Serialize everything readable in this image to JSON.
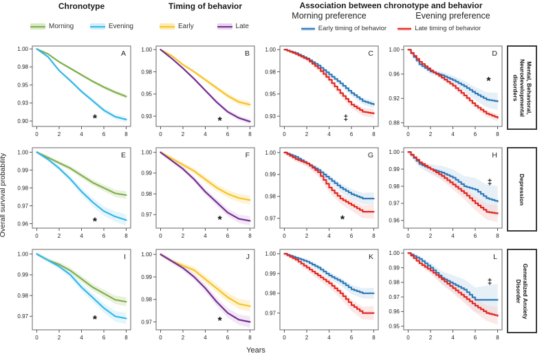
{
  "figure": {
    "column_headers": [
      "Chronotype",
      "Timing of behavior",
      "Association between chronotype  and behavior"
    ],
    "sub_headers": [
      "Morning preference",
      "Evening preference"
    ],
    "ylabel": "Overall survival probability",
    "xlabel": "Years",
    "row_labels": [
      "Mental, Behavioral, Neurodevelopmental disorders",
      "Depression",
      "Generalized Anxiety Disorder"
    ],
    "legends": {
      "chronotype": [
        {
          "label": "Morning",
          "color": "#7fae4f",
          "band": "#d8e8c2"
        },
        {
          "label": "Evening",
          "color": "#35b5e8",
          "band": "#cdeefb"
        }
      ],
      "timing": [
        {
          "label": "Early",
          "color": "#f7c325",
          "band": "#fdeab2"
        },
        {
          "label": "Late",
          "color": "#742d8f",
          "band": "#e5d3ee"
        }
      ],
      "association": [
        {
          "label": "Early timing of behavior",
          "color": "#2c79b8",
          "band": "#d3e2f0"
        },
        {
          "label": "Late timing of behavior",
          "color": "#e2261f",
          "band": "#f8d6d4"
        }
      ]
    }
  },
  "chart_data": [
    {
      "type": "line",
      "panel": "A",
      "row": 0,
      "col": 0,
      "style": "smooth",
      "group": "Chronotype",
      "outcome": "Mental, Behavioral, Neurodevelopmental disorders",
      "x": [
        0,
        1,
        2,
        3,
        4,
        5,
        6,
        7,
        8
      ],
      "xticks": [
        0,
        2,
        4,
        6,
        8
      ],
      "ylim": [
        0.8925,
        1.004
      ],
      "yticks": {
        "values": [
          1.0,
          0.975,
          0.95,
          0.925,
          0.9
        ],
        "labels": [
          "1.00",
          "0.98",
          "0.95",
          "0.93",
          "0.90"
        ]
      },
      "series": [
        {
          "name": "Morning",
          "color": "#7fae4f",
          "band": "#d8e8c2",
          "band_end": 0.003,
          "values": [
            1.0,
            0.993,
            0.982,
            0.973,
            0.964,
            0.955,
            0.947,
            0.94,
            0.934
          ]
        },
        {
          "name": "Evening",
          "color": "#35b5e8",
          "band": "#cdeefb",
          "band_end": 0.004,
          "values": [
            1.0,
            0.989,
            0.97,
            0.956,
            0.941,
            0.928,
            0.915,
            0.906,
            0.902
          ]
        }
      ],
      "significance": {
        "symbol": "*",
        "x": 5.2,
        "y": 0.9045
      }
    },
    {
      "type": "line",
      "panel": "B",
      "row": 0,
      "col": 1,
      "style": "smooth",
      "group": "Timing of behavior",
      "outcome": "Mental, Behavioral, Neurodevelopmental disorders",
      "x": [
        0,
        1,
        2,
        3,
        4,
        5,
        6,
        7,
        8
      ],
      "xticks": [
        0,
        2,
        4,
        6,
        8
      ],
      "ylim": [
        0.9135,
        1.004
      ],
      "yticks": {
        "values": [
          1.0,
          0.975,
          0.95,
          0.925
        ],
        "labels": [
          "1.00",
          "0.98",
          "0.95",
          "0.93"
        ]
      },
      "series": [
        {
          "name": "Early",
          "color": "#f7c325",
          "band": "#fdeab2",
          "band_end": 0.0035,
          "values": [
            1.0,
            0.993,
            0.983,
            0.975,
            0.966,
            0.957,
            0.948,
            0.941,
            0.938
          ]
        },
        {
          "name": "Late",
          "color": "#742d8f",
          "band": "#e5d3ee",
          "band_end": 0.003,
          "values": [
            1.0,
            0.99,
            0.979,
            0.967,
            0.954,
            0.941,
            0.93,
            0.923,
            0.919
          ]
        }
      ],
      "significance": {
        "symbol": "*",
        "x": 5.3,
        "y": 0.9205
      }
    },
    {
      "type": "line",
      "panel": "C",
      "row": 0,
      "col": 2,
      "style": "step",
      "group": "Morning preference",
      "outcome": "Mental, Behavioral, Neurodevelopmental disorders",
      "x": [
        0,
        1,
        2,
        3,
        4,
        5,
        6,
        7,
        8
      ],
      "xticks": [
        0,
        2,
        4,
        6,
        8
      ],
      "ylim": [
        0.9135,
        1.004
      ],
      "yticks": {
        "values": [
          1.0,
          0.975,
          0.95,
          0.925
        ],
        "labels": [
          "1.00",
          "0.98",
          "0.95",
          "0.93"
        ]
      },
      "series": [
        {
          "name": "Early timing of behavior",
          "color": "#2c79b8",
          "band": "#d3e2f0",
          "band_end": 0.004,
          "values": [
            1.0,
            0.996,
            0.99,
            0.982,
            0.972,
            0.962,
            0.951,
            0.942,
            0.938
          ]
        },
        {
          "name": "Late timing of behavior",
          "color": "#e2261f",
          "band": "#f8d6d4",
          "band_end": 0.005,
          "values": [
            1.0,
            0.995,
            0.989,
            0.979,
            0.966,
            0.951,
            0.938,
            0.93,
            0.928
          ]
        }
      ],
      "significance": {
        "symbol": "‡",
        "x": 5.5,
        "y": 0.9225
      }
    },
    {
      "type": "line",
      "panel": "D",
      "row": 0,
      "col": 3,
      "style": "step",
      "group": "Evening preference",
      "outcome": "Mental, Behavioral, Neurodevelopmental disorders",
      "x": [
        0,
        1,
        2,
        3,
        4,
        5,
        6,
        7,
        8
      ],
      "xticks": [
        0,
        2,
        4,
        6,
        8
      ],
      "ylim": [
        0.874,
        1.006
      ],
      "yticks": {
        "values": [
          1.0,
          0.96,
          0.92,
          0.88
        ],
        "labels": [
          "1.00",
          "0.96",
          "0.92",
          "0.88"
        ]
      },
      "series": [
        {
          "name": "Early timing of behavior",
          "color": "#2c79b8",
          "band": "#d3e2f0",
          "band_end": 0.014,
          "values": [
            1.0,
            0.976,
            0.964,
            0.958,
            0.95,
            0.94,
            0.928,
            0.918,
            0.915
          ]
        },
        {
          "name": "Late timing of behavior",
          "color": "#e2261f",
          "band": "#f8d6d4",
          "band_end": 0.006,
          "values": [
            1.0,
            0.98,
            0.966,
            0.954,
            0.941,
            0.925,
            0.908,
            0.895,
            0.888
          ]
        }
      ],
      "significance": {
        "symbol": "*",
        "x": 7.2,
        "y": 0.9495
      }
    },
    {
      "type": "line",
      "panel": "E",
      "row": 1,
      "col": 0,
      "style": "smooth",
      "group": "Chronotype",
      "outcome": "Depression",
      "x": [
        0,
        1,
        2,
        3,
        4,
        5,
        6,
        7,
        8
      ],
      "xticks": [
        0,
        2,
        4,
        6,
        8
      ],
      "ylim": [
        0.9575,
        1.0025
      ],
      "yticks": {
        "values": [
          1.0,
          0.99,
          0.98,
          0.97,
          0.96
        ],
        "labels": [
          "1.00",
          "0.99",
          "0.98",
          "0.97",
          "0.96"
        ]
      },
      "series": [
        {
          "name": "Morning",
          "color": "#7fae4f",
          "band": "#d8e8c2",
          "band_end": 0.0022,
          "values": [
            1.0,
            0.997,
            0.994,
            0.991,
            0.987,
            0.983,
            0.98,
            0.977,
            0.976
          ]
        },
        {
          "name": "Evening",
          "color": "#35b5e8",
          "band": "#cdeefb",
          "band_end": 0.0032,
          "values": [
            1.0,
            0.996,
            0.991,
            0.985,
            0.978,
            0.972,
            0.967,
            0.964,
            0.962
          ]
        }
      ],
      "significance": {
        "symbol": "*",
        "x": 5.2,
        "y": 0.9615
      }
    },
    {
      "type": "line",
      "panel": "F",
      "row": 1,
      "col": 1,
      "style": "smooth",
      "group": "Timing of behavior",
      "outcome": "Depression",
      "x": [
        0,
        1,
        2,
        3,
        4,
        5,
        6,
        7,
        8
      ],
      "xticks": [
        0,
        2,
        4,
        6,
        8
      ],
      "ylim": [
        0.9635,
        1.0022
      ],
      "yticks": {
        "values": [
          1.0,
          0.99,
          0.98,
          0.97
        ],
        "labels": [
          "1.00",
          "0.99",
          "0.98",
          "0.97"
        ]
      },
      "series": [
        {
          "name": "Early",
          "color": "#f7c325",
          "band": "#fdeab2",
          "band_end": 0.0022,
          "values": [
            1.0,
            0.997,
            0.994,
            0.991,
            0.987,
            0.983,
            0.98,
            0.978,
            0.977
          ]
        },
        {
          "name": "Late",
          "color": "#742d8f",
          "band": "#e5d3ee",
          "band_end": 0.0022,
          "values": [
            1.0,
            0.996,
            0.992,
            0.987,
            0.981,
            0.976,
            0.971,
            0.968,
            0.967
          ]
        }
      ],
      "significance": {
        "symbol": "*",
        "x": 5.3,
        "y": 0.9678
      }
    },
    {
      "type": "line",
      "panel": "G",
      "row": 1,
      "col": 2,
      "style": "step",
      "group": "Morning preference",
      "outcome": "Depression",
      "x": [
        0,
        1,
        2,
        3,
        4,
        5,
        6,
        7,
        8
      ],
      "xticks": [
        0,
        2,
        4,
        6,
        8
      ],
      "ylim": [
        0.9655,
        1.0022
      ],
      "yticks": {
        "values": [
          1.0,
          0.99,
          0.98,
          0.97
        ],
        "labels": [
          "1.00",
          "0.99",
          "0.98",
          "0.97"
        ]
      },
      "series": [
        {
          "name": "Early timing of behavior",
          "color": "#2c79b8",
          "band": "#d3e2f0",
          "band_end": 0.0028,
          "values": [
            1.0,
            0.998,
            0.995,
            0.992,
            0.988,
            0.984,
            0.981,
            0.979,
            0.979
          ]
        },
        {
          "name": "Late timing of behavior",
          "color": "#e2261f",
          "band": "#f8d6d4",
          "band_end": 0.0032,
          "values": [
            1.0,
            0.997,
            0.995,
            0.991,
            0.984,
            0.979,
            0.976,
            0.973,
            0.973
          ]
        }
      ],
      "significance": {
        "symbol": "*",
        "x": 5.2,
        "y": 0.9698
      }
    },
    {
      "type": "line",
      "panel": "H",
      "row": 1,
      "col": 3,
      "style": "step",
      "group": "Evening preference",
      "outcome": "Depression",
      "x": [
        0,
        1,
        2,
        3,
        4,
        5,
        6,
        7,
        8
      ],
      "xticks": [
        0,
        2,
        4,
        6,
        8
      ],
      "ylim": [
        0.9555,
        1.0025
      ],
      "yticks": {
        "values": [
          1.0,
          0.99,
          0.98,
          0.97,
          0.96
        ],
        "labels": [
          "1.00",
          "0.99",
          "0.98",
          "0.97",
          "0.96"
        ]
      },
      "series": [
        {
          "name": "Early timing of behavior",
          "color": "#2c79b8",
          "band": "#d3e2f0",
          "band_end": 0.009,
          "values": [
            1.0,
            0.993,
            0.99,
            0.988,
            0.985,
            0.98,
            0.978,
            0.973,
            0.971
          ]
        },
        {
          "name": "Late timing of behavior",
          "color": "#e2261f",
          "band": "#f8d6d4",
          "band_end": 0.005,
          "values": [
            1.0,
            0.994,
            0.99,
            0.986,
            0.981,
            0.976,
            0.97,
            0.965,
            0.964
          ]
        }
      ],
      "significance": {
        "symbol": "‡",
        "x": 7.3,
        "y": 0.982
      }
    },
    {
      "type": "line",
      "panel": "I",
      "row": 2,
      "col": 0,
      "style": "smooth",
      "group": "Chronotype",
      "outcome": "Generalized Anxiety Disorder",
      "x": [
        0,
        1,
        2,
        3,
        4,
        5,
        6,
        7,
        8
      ],
      "xticks": [
        0,
        2,
        4,
        6,
        8
      ],
      "ylim": [
        0.9635,
        1.0022
      ],
      "yticks": {
        "values": [
          1.0,
          0.99,
          0.98,
          0.97
        ],
        "labels": [
          "1.00",
          "0.99",
          "0.98",
          "0.97"
        ]
      },
      "series": [
        {
          "name": "Morning",
          "color": "#7fae4f",
          "band": "#d8e8c2",
          "band_end": 0.0022,
          "values": [
            1.0,
            0.997,
            0.995,
            0.992,
            0.988,
            0.984,
            0.981,
            0.978,
            0.977
          ]
        },
        {
          "name": "Evening",
          "color": "#35b5e8",
          "band": "#cdeefb",
          "band_end": 0.0028,
          "values": [
            1.0,
            0.997,
            0.994,
            0.99,
            0.984,
            0.979,
            0.974,
            0.97,
            0.969
          ]
        }
      ],
      "significance": {
        "symbol": "*",
        "x": 5.2,
        "y": 0.9688
      }
    },
    {
      "type": "line",
      "panel": "J",
      "row": 2,
      "col": 1,
      "style": "smooth",
      "group": "Timing of behavior",
      "outcome": "Generalized Anxiety Disorder",
      "x": [
        0,
        1,
        2,
        3,
        4,
        5,
        6,
        7,
        8
      ],
      "xticks": [
        0,
        2,
        4,
        6,
        8
      ],
      "ylim": [
        0.9665,
        1.0022
      ],
      "yticks": {
        "values": [
          1.0,
          0.99,
          0.98,
          0.97
        ],
        "labels": [
          "1.00",
          "0.99",
          "0.98",
          "0.97"
        ]
      },
      "series": [
        {
          "name": "Early",
          "color": "#f7c325",
          "band": "#fdeab2",
          "band_end": 0.0025,
          "values": [
            1.0,
            0.997,
            0.995,
            0.993,
            0.989,
            0.985,
            0.981,
            0.978,
            0.977
          ]
        },
        {
          "name": "Late",
          "color": "#742d8f",
          "band": "#e5d3ee",
          "band_end": 0.0025,
          "values": [
            1.0,
            0.997,
            0.994,
            0.99,
            0.985,
            0.979,
            0.974,
            0.971,
            0.97
          ]
        }
      ],
      "significance": {
        "symbol": "*",
        "x": 5.3,
        "y": 0.9708
      }
    },
    {
      "type": "line",
      "panel": "K",
      "row": 2,
      "col": 2,
      "style": "step",
      "group": "Morning preference",
      "outcome": "Generalized Anxiety Disorder",
      "x": [
        0,
        1,
        2,
        3,
        4,
        5,
        6,
        7,
        8
      ],
      "xticks": [
        0,
        2,
        4,
        6,
        8
      ],
      "ylim": [
        0.9615,
        1.0022
      ],
      "yticks": {
        "values": [
          1.0,
          0.99,
          0.98,
          0.97
        ],
        "labels": [
          "1.00",
          "0.99",
          "0.98",
          "0.97"
        ]
      },
      "series": [
        {
          "name": "Early timing of behavior",
          "color": "#2c79b8",
          "band": "#d3e2f0",
          "band_end": 0.0028,
          "values": [
            1.0,
            0.998,
            0.996,
            0.993,
            0.989,
            0.986,
            0.982,
            0.98,
            0.98
          ]
        },
        {
          "name": "Late timing of behavior",
          "color": "#e2261f",
          "band": "#f8d6d4",
          "band_end": 0.0035,
          "values": [
            1.0,
            0.997,
            0.993,
            0.989,
            0.985,
            0.98,
            0.974,
            0.97,
            0.97
          ]
        }
      ],
      "significance": null
    },
    {
      "type": "line",
      "panel": "L",
      "row": 2,
      "col": 3,
      "style": "step",
      "group": "Evening preference",
      "outcome": "Generalized Anxiety Disorder",
      "x": [
        0,
        1,
        2,
        3,
        4,
        5,
        6,
        7,
        8
      ],
      "xticks": [
        0,
        2,
        4,
        6,
        8
      ],
      "ylim": [
        0.9475,
        1.0025
      ],
      "yticks": {
        "values": [
          1.0,
          0.99,
          0.98,
          0.97,
          0.96,
          0.95
        ],
        "labels": [
          "1.00",
          "0.99",
          "0.98",
          "0.97",
          "0.96",
          "0.95"
        ]
      },
      "series": [
        {
          "name": "Early timing of behavior",
          "color": "#2c79b8",
          "band": "#d3e2f0",
          "band_end": 0.011,
          "values": [
            1.0,
            0.996,
            0.99,
            0.983,
            0.979,
            0.975,
            0.968,
            0.968,
            0.968
          ]
        },
        {
          "name": "Late timing of behavior",
          "color": "#e2261f",
          "band": "#f8d6d4",
          "band_end": 0.006,
          "values": [
            1.0,
            0.993,
            0.988,
            0.982,
            0.976,
            0.97,
            0.964,
            0.959,
            0.957
          ]
        }
      ],
      "significance": {
        "symbol": "‡",
        "x": 7.3,
        "y": 0.98
      }
    }
  ]
}
